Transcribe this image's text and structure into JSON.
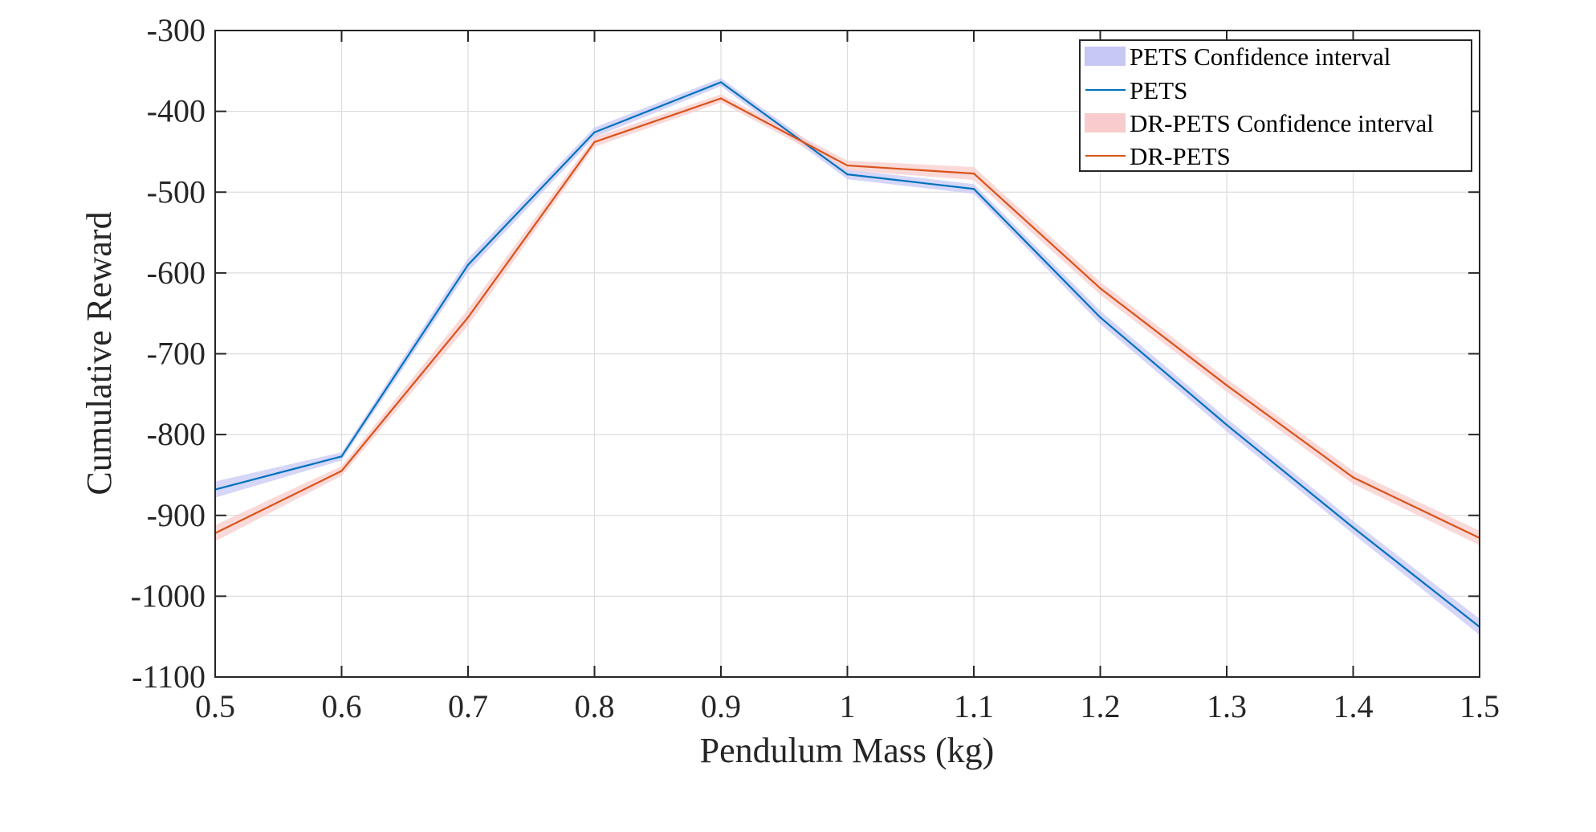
{
  "chart_data": {
    "type": "line",
    "title": "",
    "xlabel": "Pendulum Mass (kg)",
    "ylabel": "Cumulative Reward",
    "xlim": [
      0.5,
      1.5
    ],
    "ylim": [
      -1100,
      -300
    ],
    "grid": true,
    "legend_position": "top-right",
    "x": [
      0.5,
      0.6,
      0.7,
      0.8,
      0.9,
      1.0,
      1.1,
      1.2,
      1.3,
      1.4,
      1.5
    ],
    "xticks": [
      "0.5",
      "0.6",
      "0.7",
      "0.8",
      "0.9",
      "1",
      "1.1",
      "1.2",
      "1.3",
      "1.4",
      "1.5"
    ],
    "xtick_values": [
      0.5,
      0.6,
      0.7,
      0.8,
      0.9,
      1.0,
      1.1,
      1.2,
      1.3,
      1.4,
      1.5
    ],
    "yticks": [
      "-300",
      "-400",
      "-500",
      "-600",
      "-700",
      "-800",
      "-900",
      "-1000",
      "-1100"
    ],
    "ytick_values": [
      -300,
      -400,
      -500,
      -600,
      -700,
      -800,
      -900,
      -1000,
      -1100
    ],
    "series": [
      {
        "name": "PETS",
        "band_name": "PETS Confidence interval",
        "color": "#0072BD",
        "band_color": "#C8C8F5",
        "values": [
          -868,
          -827,
          -590,
          -426,
          -364,
          -478,
          -496,
          -655,
          -788,
          -915,
          -1038
        ],
        "band_halfwidth": [
          10,
          5,
          8,
          6,
          5,
          6,
          6,
          8,
          8,
          8,
          10
        ]
      },
      {
        "name": "DR-PETS",
        "band_name": "DR-PETS Confidence interval",
        "color": "#D95319",
        "band_color": "#F8CCCC",
        "values": [
          -922,
          -845,
          -655,
          -438,
          -384,
          -467,
          -477,
          -619,
          -739,
          -853,
          -928
        ],
        "band_halfwidth": [
          10,
          6,
          10,
          6,
          5,
          6,
          8,
          8,
          8,
          8,
          9
        ]
      }
    ]
  }
}
